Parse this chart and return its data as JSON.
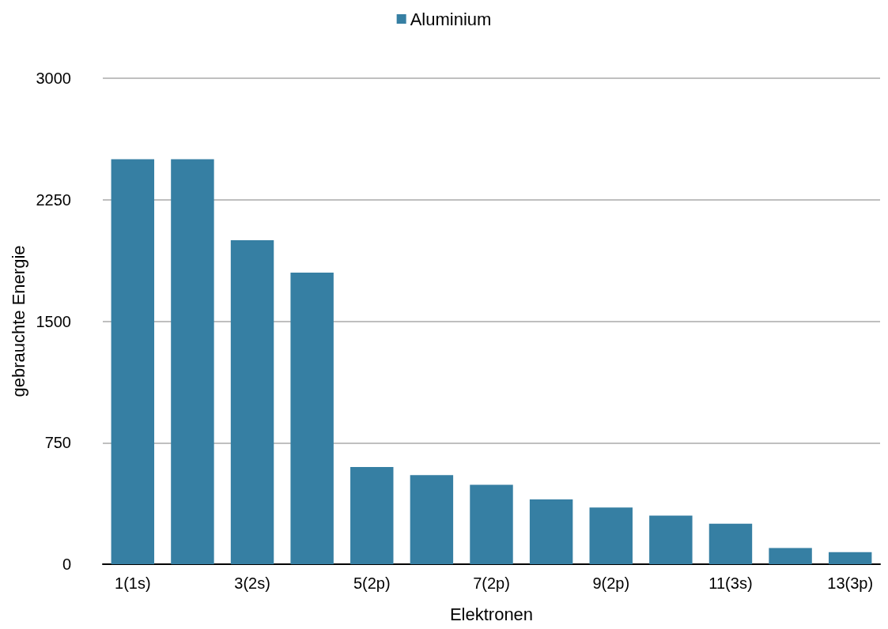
{
  "chart_data": {
    "type": "bar",
    "xlabel": "Elektronen",
    "ylabel": "gebrauchte Energie",
    "categories": [
      "1(1s)",
      null,
      "3(2s)",
      null,
      "5(2p)",
      null,
      "7(2p)",
      null,
      "9(2p)",
      null,
      "11(3s)",
      null,
      "13(3p)"
    ],
    "series": [
      {
        "name": "Aluminium",
        "color": "#367fa3",
        "values": [
          2500,
          2500,
          2000,
          1800,
          600,
          550,
          490,
          400,
          350,
          300,
          250,
          100,
          75
        ]
      }
    ],
    "ylim": [
      0,
      3000
    ],
    "yticks": [
      0,
      750,
      1500,
      2250,
      3000
    ],
    "grid": "y",
    "legend": "top"
  }
}
